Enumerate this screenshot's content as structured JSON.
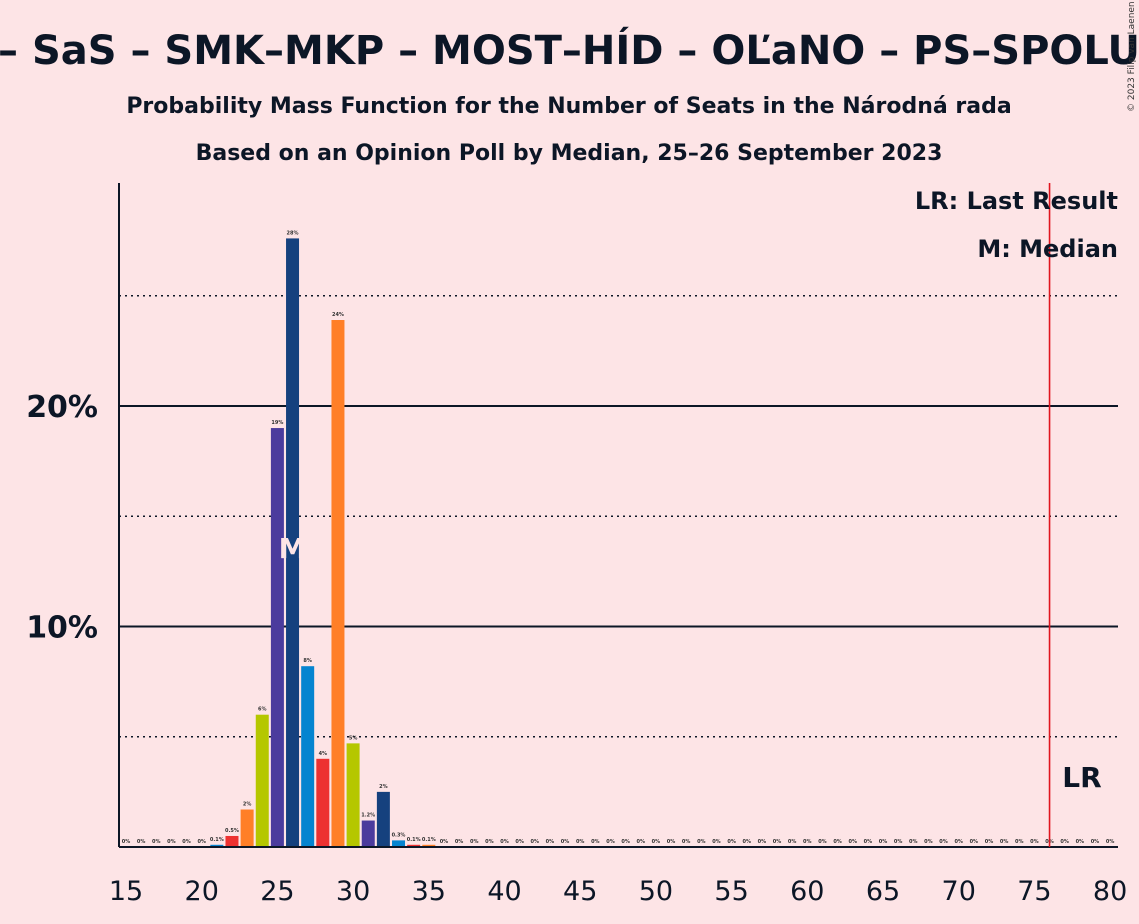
{
  "title": "– SaS – SMK–MKP – MOST–HÍD – OĽaNO – PS–SPOLU",
  "subtitle1": "Probability Mass Function for the Number of Seats in the Národná rada",
  "subtitle2": "Based on an Opinion Poll by Median, 25–26 September 2023",
  "copyright": "© 2023 Filip van Laenen",
  "legend": {
    "lr": "LR: Last Result",
    "median": "M: Median"
  },
  "lr_marker_label": "LR",
  "median_marker_label": "M",
  "colors": {
    "background": "#fde4e6",
    "text": "#0c1626",
    "lr_line": "#e0141e",
    "party_colors": [
      "#0584d0",
      "#ed3131",
      "#ff7f27",
      "#b5c700",
      "#4b3b9d",
      "#15417e"
    ]
  },
  "chart_data": {
    "type": "bar",
    "xlim": [
      15,
      80
    ],
    "ylim": [
      0,
      30
    ],
    "yticks": [
      {
        "value": 10,
        "label": "10%"
      },
      {
        "value": 20,
        "label": "20%"
      }
    ],
    "dotted_gridlines": [
      5,
      15,
      25
    ],
    "xticks": [
      15,
      20,
      25,
      30,
      35,
      40,
      45,
      50,
      55,
      60,
      65,
      70,
      75,
      80
    ],
    "last_result": 76,
    "median": 26,
    "bars": [
      {
        "x": 15,
        "value": 0,
        "label": "0%"
      },
      {
        "x": 16,
        "value": 0,
        "label": "0%"
      },
      {
        "x": 17,
        "value": 0,
        "label": "0%"
      },
      {
        "x": 18,
        "value": 0,
        "label": "0%"
      },
      {
        "x": 19,
        "value": 0,
        "label": "0%"
      },
      {
        "x": 20,
        "value": 0,
        "label": "0%"
      },
      {
        "x": 21,
        "value": 0.1,
        "label": "0.1%"
      },
      {
        "x": 22,
        "value": 0.5,
        "label": "0.5%"
      },
      {
        "x": 23,
        "value": 1.7,
        "label": "2%"
      },
      {
        "x": 24,
        "value": 6,
        "label": "6%"
      },
      {
        "x": 25,
        "value": 19,
        "label": "19%"
      },
      {
        "x": 26,
        "value": 27.6,
        "label": "28%"
      },
      {
        "x": 27,
        "value": 8.2,
        "label": "8%"
      },
      {
        "x": 28,
        "value": 4,
        "label": "4%"
      },
      {
        "x": 29,
        "value": 23.9,
        "label": "24%"
      },
      {
        "x": 30,
        "value": 4.7,
        "label": "5%"
      },
      {
        "x": 31,
        "value": 1.2,
        "label": "1.2%"
      },
      {
        "x": 32,
        "value": 2.5,
        "label": "2%"
      },
      {
        "x": 33,
        "value": 0.3,
        "label": "0.3%"
      },
      {
        "x": 34,
        "value": 0.1,
        "label": "0.1%"
      },
      {
        "x": 35,
        "value": 0.1,
        "label": "0.1%"
      },
      {
        "x": 36,
        "value": 0,
        "label": "0%"
      },
      {
        "x": 37,
        "value": 0,
        "label": "0%"
      },
      {
        "x": 38,
        "value": 0,
        "label": "0%"
      },
      {
        "x": 39,
        "value": 0,
        "label": "0%"
      },
      {
        "x": 40,
        "value": 0,
        "label": "0%"
      },
      {
        "x": 41,
        "value": 0,
        "label": "0%"
      },
      {
        "x": 42,
        "value": 0,
        "label": "0%"
      },
      {
        "x": 43,
        "value": 0,
        "label": "0%"
      },
      {
        "x": 44,
        "value": 0,
        "label": "0%"
      },
      {
        "x": 45,
        "value": 0,
        "label": "0%"
      },
      {
        "x": 46,
        "value": 0,
        "label": "0%"
      },
      {
        "x": 47,
        "value": 0,
        "label": "0%"
      },
      {
        "x": 48,
        "value": 0,
        "label": "0%"
      },
      {
        "x": 49,
        "value": 0,
        "label": "0%"
      },
      {
        "x": 50,
        "value": 0,
        "label": "0%"
      },
      {
        "x": 51,
        "value": 0,
        "label": "0%"
      },
      {
        "x": 52,
        "value": 0,
        "label": "0%"
      },
      {
        "x": 53,
        "value": 0,
        "label": "0%"
      },
      {
        "x": 54,
        "value": 0,
        "label": "0%"
      },
      {
        "x": 55,
        "value": 0,
        "label": "0%"
      },
      {
        "x": 56,
        "value": 0,
        "label": "0%"
      },
      {
        "x": 57,
        "value": 0,
        "label": "0%"
      },
      {
        "x": 58,
        "value": 0,
        "label": "0%"
      },
      {
        "x": 59,
        "value": 0,
        "label": "0%"
      },
      {
        "x": 60,
        "value": 0,
        "label": "0%"
      },
      {
        "x": 61,
        "value": 0,
        "label": "0%"
      },
      {
        "x": 62,
        "value": 0,
        "label": "0%"
      },
      {
        "x": 63,
        "value": 0,
        "label": "0%"
      },
      {
        "x": 64,
        "value": 0,
        "label": "0%"
      },
      {
        "x": 65,
        "value": 0,
        "label": "0%"
      },
      {
        "x": 66,
        "value": 0,
        "label": "0%"
      },
      {
        "x": 67,
        "value": 0,
        "label": "0%"
      },
      {
        "x": 68,
        "value": 0,
        "label": "0%"
      },
      {
        "x": 69,
        "value": 0,
        "label": "0%"
      },
      {
        "x": 70,
        "value": 0,
        "label": "0%"
      },
      {
        "x": 71,
        "value": 0,
        "label": "0%"
      },
      {
        "x": 72,
        "value": 0,
        "label": "0%"
      },
      {
        "x": 73,
        "value": 0,
        "label": "0%"
      },
      {
        "x": 74,
        "value": 0,
        "label": "0%"
      },
      {
        "x": 75,
        "value": 0,
        "label": "0%"
      },
      {
        "x": 76,
        "value": 0,
        "label": "0%"
      },
      {
        "x": 77,
        "value": 0,
        "label": "0%"
      },
      {
        "x": 78,
        "value": 0,
        "label": "0%"
      },
      {
        "x": 79,
        "value": 0,
        "label": "0%"
      },
      {
        "x": 80,
        "value": 0,
        "label": "0%"
      }
    ]
  }
}
